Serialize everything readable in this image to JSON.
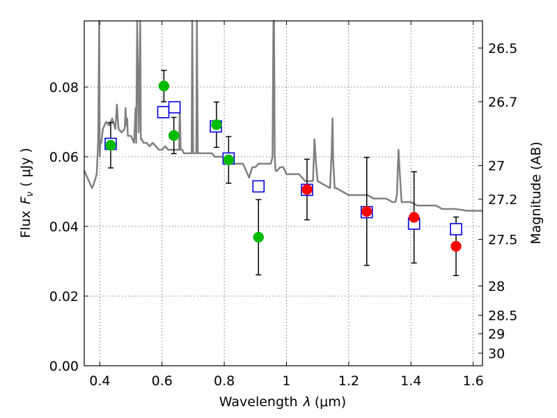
{
  "chart_data": {
    "type": "scatter",
    "title": "",
    "xlabel_text": "Wavelength",
    "xlabel_symbol": "λ",
    "xlabel_unit": "(μm)",
    "ylabel_text": "Flux",
    "ylabel_symbol": "F",
    "ylabel_sub": "ν",
    "ylabel_unit": "( μJy )",
    "y2label": "Magnitude (AB)",
    "xlim": [
      0.35,
      1.63
    ],
    "ylim": [
      0.0,
      0.099
    ],
    "x_ticks": [
      0.4,
      0.6,
      0.8,
      1.0,
      1.2,
      1.4,
      1.6
    ],
    "x_tick_labels": [
      "0.4",
      "0.6",
      "0.8",
      "1",
      "1.2",
      "1.4",
      "1.6"
    ],
    "y_ticks": [
      0.0,
      0.02,
      0.04,
      0.06,
      0.08
    ],
    "y_tick_labels": [
      "0.00",
      "0.02",
      "0.04",
      "0.06",
      "0.08"
    ],
    "y2_ticks": [
      {
        "flux": 0.0912,
        "label": "26.5"
      },
      {
        "flux": 0.0758,
        "label": "26.7"
      },
      {
        "flux": 0.0575,
        "label": "27"
      },
      {
        "flux": 0.0478,
        "label": "27.2"
      },
      {
        "flux": 0.0363,
        "label": "27.5"
      },
      {
        "flux": 0.0229,
        "label": "28"
      },
      {
        "flux": 0.0145,
        "label": "28.5"
      },
      {
        "flux": 0.0092,
        "label": "29"
      },
      {
        "flux": 0.0036,
        "label": "30"
      }
    ],
    "grid": true,
    "series": [
      {
        "kind": "model-spectrum",
        "color": "#808080",
        "x": [
          0.35,
          0.36,
          0.37,
          0.375,
          0.38,
          0.39,
          0.395,
          0.398,
          0.4,
          0.402,
          0.405,
          0.41,
          0.42,
          0.43,
          0.44,
          0.45,
          0.455,
          0.46,
          0.47,
          0.48,
          0.483,
          0.485,
          0.488,
          0.49,
          0.5,
          0.51,
          0.515,
          0.517,
          0.52,
          0.525,
          0.53,
          0.532,
          0.535,
          0.54,
          0.55,
          0.56,
          0.57,
          0.58,
          0.59,
          0.6,
          0.61,
          0.62,
          0.63,
          0.64,
          0.65,
          0.655,
          0.657,
          0.66,
          0.665,
          0.67,
          0.68,
          0.69,
          0.695,
          0.697,
          0.7,
          0.705,
          0.71,
          0.712,
          0.715,
          0.72,
          0.73,
          0.74,
          0.75,
          0.76,
          0.77,
          0.78,
          0.79,
          0.8,
          0.81,
          0.82,
          0.83,
          0.84,
          0.85,
          0.86,
          0.87,
          0.88,
          0.89,
          0.9,
          0.91,
          0.92,
          0.93,
          0.94,
          0.95,
          0.955,
          0.958,
          0.96,
          0.962,
          0.965,
          0.97,
          0.98,
          0.99,
          1.0,
          1.02,
          1.04,
          1.06,
          1.08,
          1.085,
          1.09,
          1.095,
          1.1,
          1.12,
          1.14,
          1.145,
          1.148,
          1.15,
          1.155,
          1.16,
          1.18,
          1.2,
          1.22,
          1.24,
          1.26,
          1.28,
          1.3,
          1.32,
          1.34,
          1.35,
          1.355,
          1.36,
          1.365,
          1.37,
          1.38,
          1.4,
          1.42,
          1.44,
          1.46,
          1.48,
          1.5,
          1.52,
          1.54,
          1.56,
          1.58,
          1.6,
          1.63
        ],
        "y": [
          0.056,
          0.054,
          0.052,
          0.051,
          0.052,
          0.055,
          0.065,
          0.099,
          0.06,
          0.064,
          0.064,
          0.068,
          0.07,
          0.069,
          0.071,
          0.068,
          0.075,
          0.068,
          0.067,
          0.068,
          0.074,
          0.069,
          0.071,
          0.066,
          0.066,
          0.064,
          0.074,
          0.064,
          0.099,
          0.067,
          0.099,
          0.065,
          0.065,
          0.064,
          0.064,
          0.063,
          0.064,
          0.063,
          0.062,
          0.062,
          0.063,
          0.062,
          0.062,
          0.062,
          0.062,
          0.062,
          0.075,
          0.062,
          0.062,
          0.061,
          0.061,
          0.061,
          0.061,
          0.099,
          0.061,
          0.061,
          0.061,
          0.099,
          0.061,
          0.061,
          0.061,
          0.061,
          0.061,
          0.061,
          0.06,
          0.06,
          0.06,
          0.06,
          0.059,
          0.059,
          0.058,
          0.058,
          0.058,
          0.058,
          0.056,
          0.054,
          0.057,
          0.057,
          0.058,
          0.058,
          0.058,
          0.058,
          0.058,
          0.06,
          0.099,
          0.099,
          0.06,
          0.056,
          0.056,
          0.057,
          0.057,
          0.055,
          0.055,
          0.055,
          0.053,
          0.053,
          0.053,
          0.065,
          0.058,
          0.053,
          0.052,
          0.051,
          0.061,
          0.071,
          0.059,
          0.051,
          0.051,
          0.05,
          0.049,
          0.049,
          0.049,
          0.049,
          0.048,
          0.048,
          0.048,
          0.047,
          0.047,
          0.049,
          0.062,
          0.054,
          0.047,
          0.047,
          0.047,
          0.046,
          0.046,
          0.046,
          0.046,
          0.045,
          0.045,
          0.045,
          0.0448,
          0.0445,
          0.0445,
          0.0445
        ]
      },
      {
        "kind": "observed",
        "marker": "circle",
        "color": "#00bb00",
        "points": [
          {
            "x": 0.435,
            "y": 0.0633,
            "err": 0.0065
          },
          {
            "x": 0.606,
            "y": 0.0803,
            "err": 0.0045
          },
          {
            "x": 0.638,
            "y": 0.0661,
            "err": 0.0052
          },
          {
            "x": 0.775,
            "y": 0.0692,
            "err": 0.0065
          },
          {
            "x": 0.814,
            "y": 0.0591,
            "err": 0.0067
          },
          {
            "x": 0.91,
            "y": 0.0369,
            "err": 0.0108
          }
        ]
      },
      {
        "kind": "observed",
        "marker": "circle",
        "color": "#ff0000",
        "points": [
          {
            "x": 1.066,
            "y": 0.0506,
            "err": 0.0087
          },
          {
            "x": 1.258,
            "y": 0.0443,
            "err": 0.0155
          },
          {
            "x": 1.41,
            "y": 0.0426,
            "err": 0.0131
          },
          {
            "x": 1.545,
            "y": 0.0343,
            "err": 0.0084
          }
        ]
      },
      {
        "kind": "model-photometry",
        "marker": "square",
        "color": "#0000dd",
        "points": [
          {
            "x": 0.435,
            "y": 0.0637
          },
          {
            "x": 0.604,
            "y": 0.0728
          },
          {
            "x": 0.64,
            "y": 0.0742
          },
          {
            "x": 0.773,
            "y": 0.0687
          },
          {
            "x": 0.814,
            "y": 0.0595
          },
          {
            "x": 0.91,
            "y": 0.0515
          },
          {
            "x": 1.066,
            "y": 0.0505
          },
          {
            "x": 1.258,
            "y": 0.0441
          },
          {
            "x": 1.41,
            "y": 0.0408
          },
          {
            "x": 1.545,
            "y": 0.0392
          }
        ]
      }
    ]
  }
}
